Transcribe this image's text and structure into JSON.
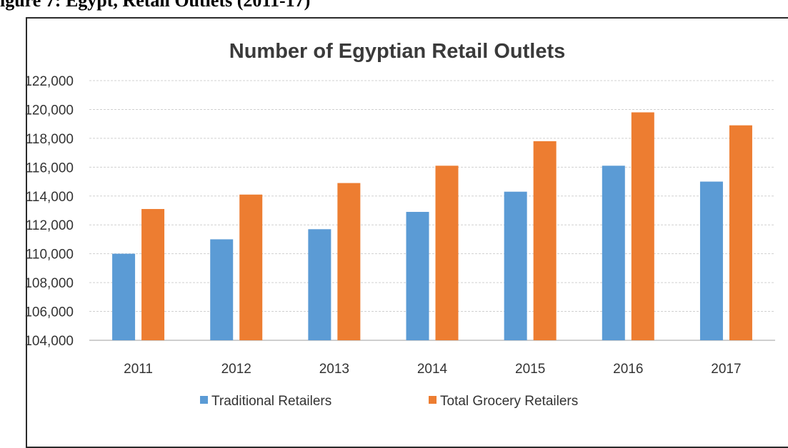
{
  "figure_caption": "igure 7:  Egypt, Retail Outlets (2011-17)",
  "chart_data": {
    "type": "bar",
    "title": "Number of Egyptian Retail Outlets",
    "xlabel": "",
    "ylabel": "",
    "categories": [
      "2011",
      "2012",
      "2013",
      "2014",
      "2015",
      "2016",
      "2017"
    ],
    "series": [
      {
        "name": "Traditional Retailers",
        "color": "#5b9bd5",
        "values": [
          110000,
          111000,
          111700,
          112900,
          114300,
          116100,
          115000
        ]
      },
      {
        "name": "Total Grocery Retailers",
        "color": "#ed7d31",
        "values": [
          113100,
          114100,
          114900,
          116100,
          117800,
          119800,
          118900
        ]
      }
    ],
    "ylim": [
      104000,
      122000
    ],
    "yticks": [
      "104,000",
      "106,000",
      "108,000",
      "110,000",
      "112,000",
      "114,000",
      "116,000",
      "118,000",
      "120,000",
      "122,000"
    ],
    "grid": true,
    "legend_position": "bottom"
  }
}
